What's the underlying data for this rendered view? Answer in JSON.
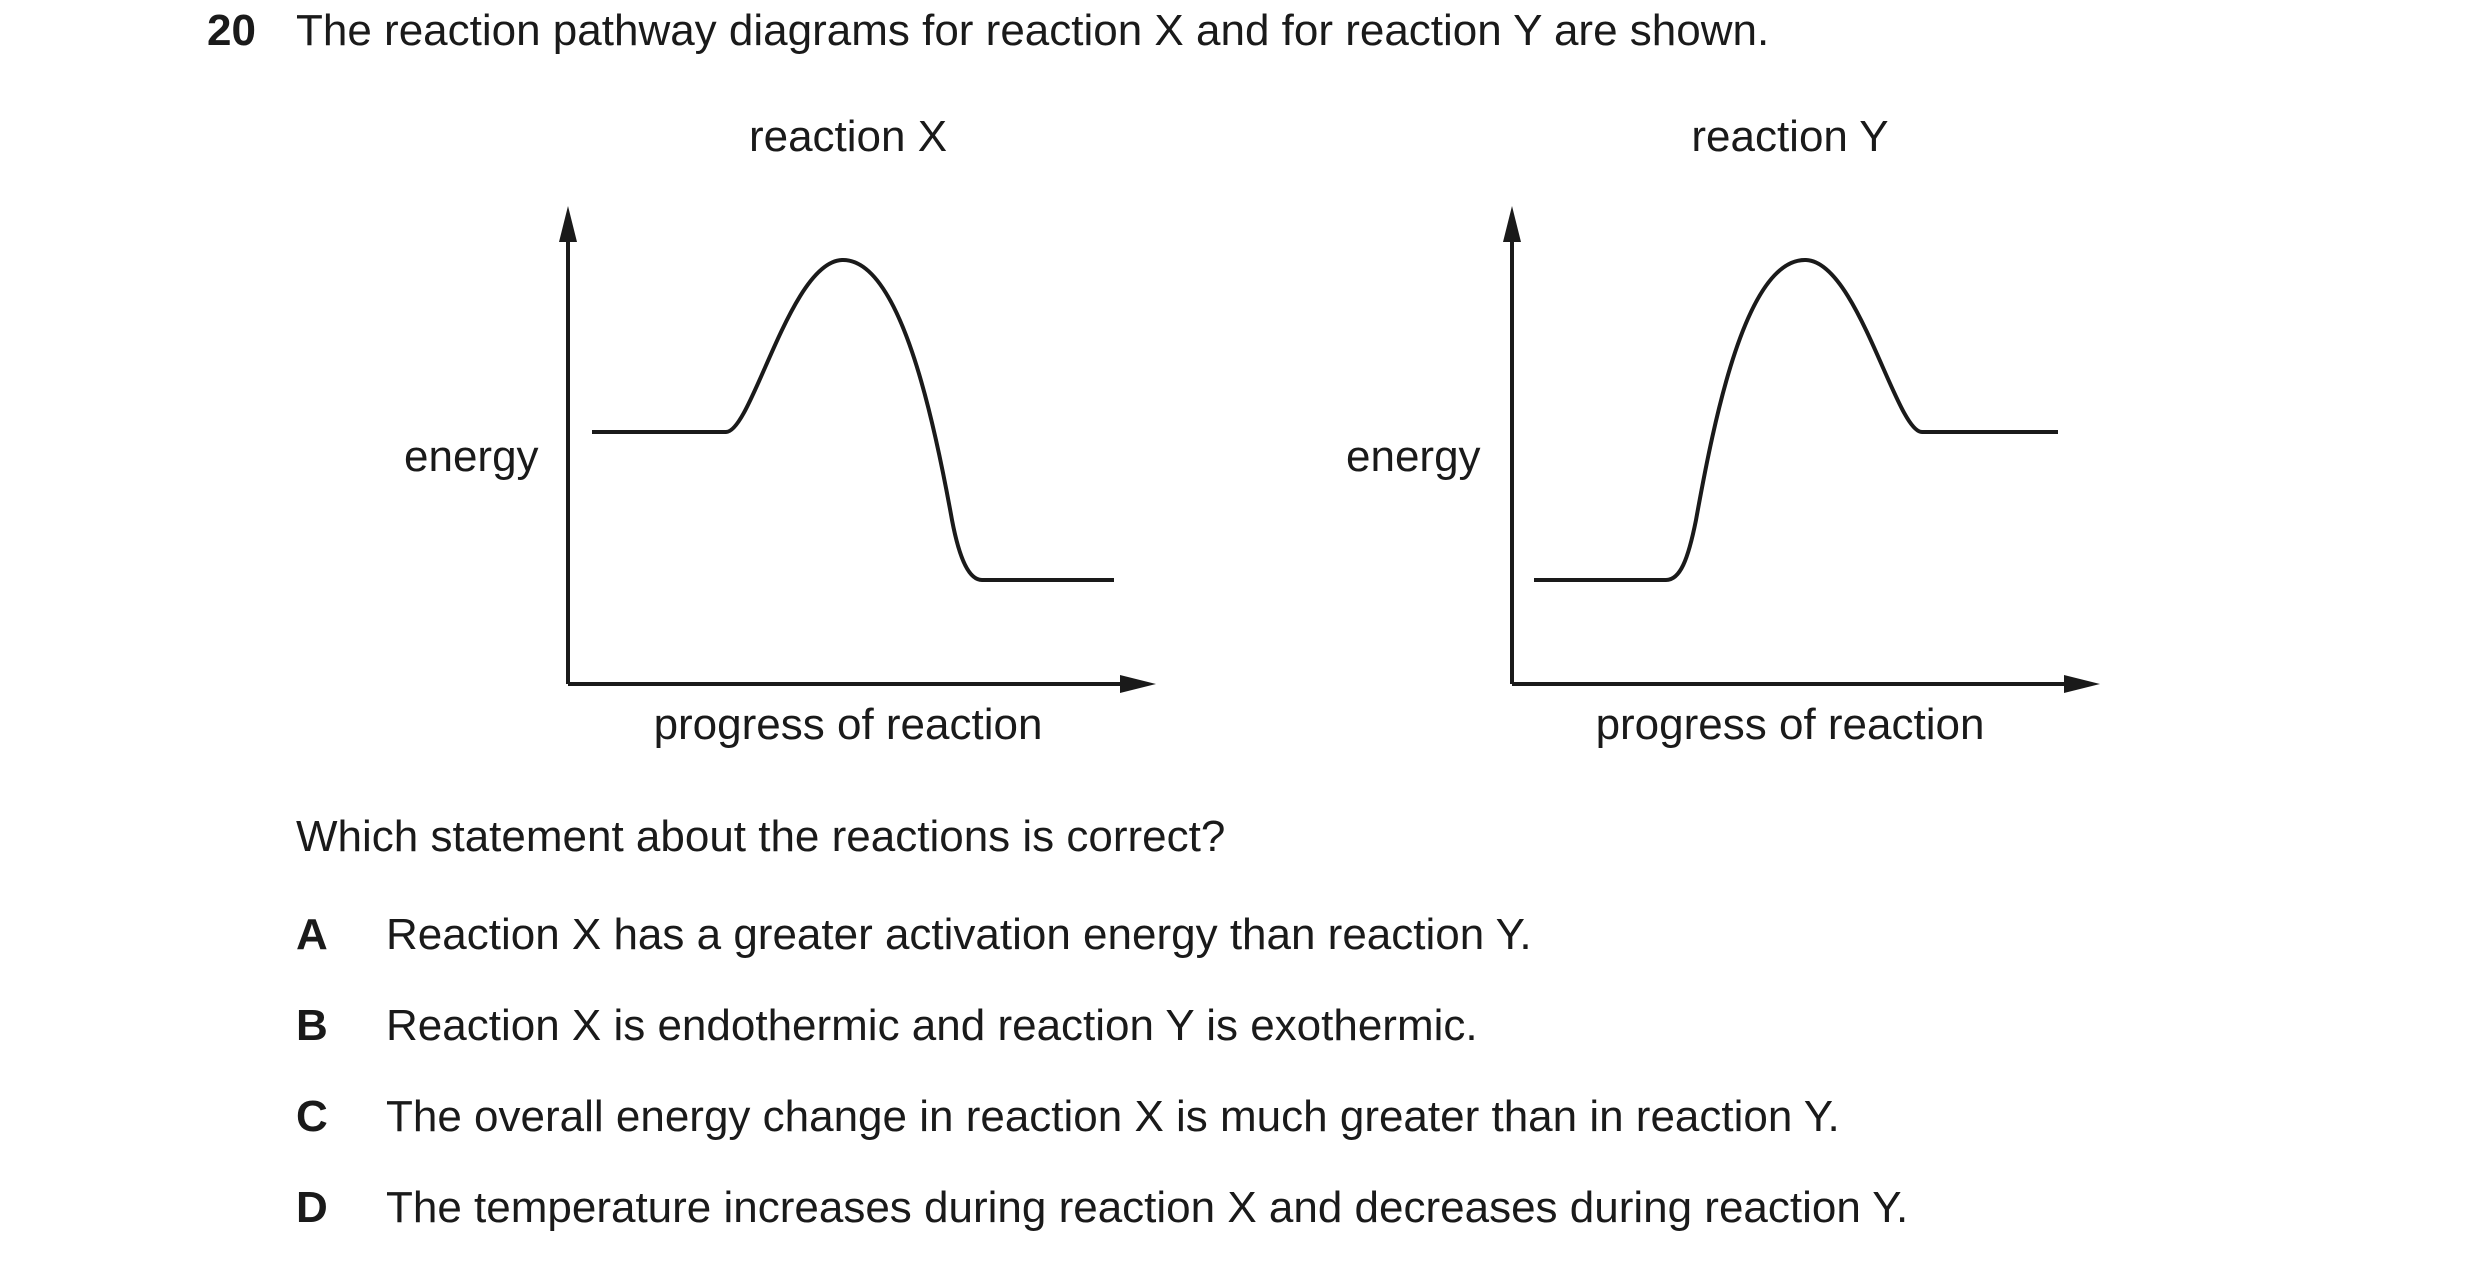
{
  "question": {
    "number": "20",
    "text": "The reaction pathway diagrams for reaction X and for reaction Y are shown."
  },
  "diagrams": [
    {
      "title": "reaction X",
      "ylabel": "energy",
      "xlabel": "progress of reaction",
      "profile": "exothermic"
    },
    {
      "title": "reaction Y",
      "ylabel": "energy",
      "xlabel": "progress of reaction",
      "profile": "endothermic"
    }
  ],
  "prompt": "Which statement about the reactions is correct?",
  "options": [
    {
      "letter": "A",
      "text": "Reaction X has a greater activation energy than reaction Y."
    },
    {
      "letter": "B",
      "text": "Reaction X is endothermic and reaction Y is exothermic."
    },
    {
      "letter": "C",
      "text": "The overall energy change in reaction X is much greater than in reaction Y."
    },
    {
      "letter": "D",
      "text": "The temperature increases during reaction X and decreases during reaction Y."
    }
  ],
  "colors": {
    "ink": "#1a1a1a"
  }
}
